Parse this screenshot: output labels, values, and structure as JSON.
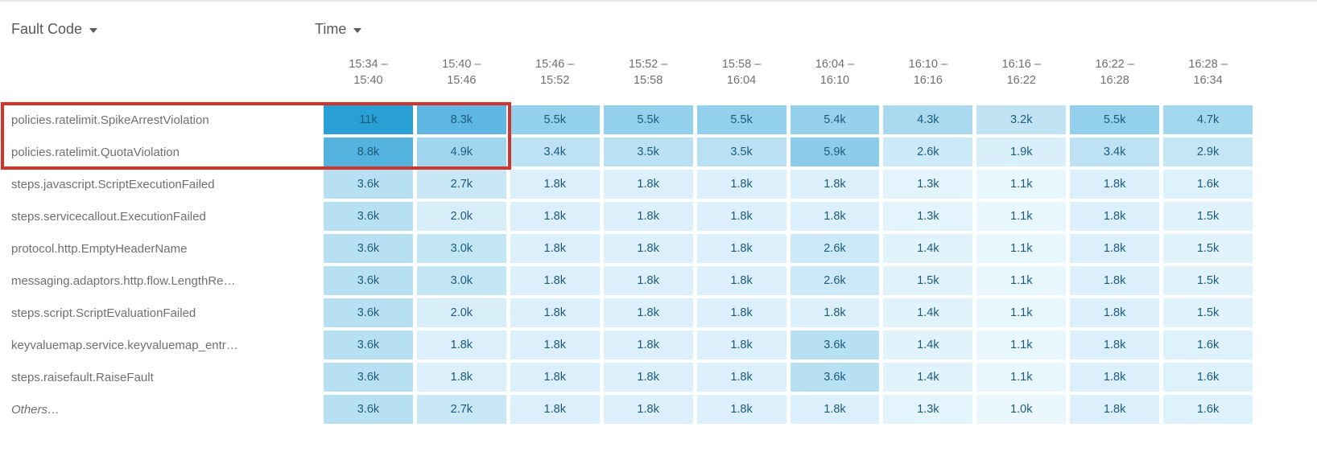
{
  "headers": {
    "fault_code": "Fault Code",
    "time": "Time"
  },
  "time_buckets": [
    {
      "top": "15:34 –",
      "bottom": "15:40"
    },
    {
      "top": "15:40 –",
      "bottom": "15:46"
    },
    {
      "top": "15:46 –",
      "bottom": "15:52"
    },
    {
      "top": "15:52 –",
      "bottom": "15:58"
    },
    {
      "top": "15:58 –",
      "bottom": "16:04"
    },
    {
      "top": "16:04 –",
      "bottom": "16:10"
    },
    {
      "top": "16:10 –",
      "bottom": "16:16"
    },
    {
      "top": "16:16 –",
      "bottom": "16:22"
    },
    {
      "top": "16:22 –",
      "bottom": "16:28"
    },
    {
      "top": "16:28 –",
      "bottom": "16:34"
    }
  ],
  "chart_data": {
    "type": "heatmap",
    "x_categories": [
      "15:34 – 15:40",
      "15:40 – 15:46",
      "15:46 – 15:52",
      "15:52 – 15:58",
      "15:58 – 16:04",
      "16:04 – 16:10",
      "16:10 – 16:16",
      "16:16 – 16:22",
      "16:22 – 16:28",
      "16:28 – 16:34"
    ],
    "rows": [
      {
        "label": "policies.ratelimit.SpikeArrestViolation",
        "italic": false,
        "values": [
          "11k",
          "8.3k",
          "5.5k",
          "5.5k",
          "5.5k",
          "5.4k",
          "4.3k",
          "3.2k",
          "5.5k",
          "4.7k"
        ]
      },
      {
        "label": "policies.ratelimit.QuotaViolation",
        "italic": false,
        "values": [
          "8.8k",
          "4.9k",
          "3.4k",
          "3.5k",
          "3.5k",
          "5.9k",
          "2.6k",
          "1.9k",
          "3.4k",
          "2.9k"
        ]
      },
      {
        "label": "steps.javascript.ScriptExecutionFailed",
        "italic": false,
        "values": [
          "3.6k",
          "2.7k",
          "1.8k",
          "1.8k",
          "1.8k",
          "1.8k",
          "1.3k",
          "1.1k",
          "1.8k",
          "1.6k"
        ]
      },
      {
        "label": "steps.servicecallout.ExecutionFailed",
        "italic": false,
        "values": [
          "3.6k",
          "2.0k",
          "1.8k",
          "1.8k",
          "1.8k",
          "1.8k",
          "1.3k",
          "1.1k",
          "1.8k",
          "1.5k"
        ]
      },
      {
        "label": "protocol.http.EmptyHeaderName",
        "italic": false,
        "values": [
          "3.6k",
          "3.0k",
          "1.8k",
          "1.8k",
          "1.8k",
          "2.6k",
          "1.4k",
          "1.1k",
          "1.8k",
          "1.5k"
        ]
      },
      {
        "label": "messaging.adaptors.http.flow.LengthRe…",
        "italic": false,
        "values": [
          "3.6k",
          "3.0k",
          "1.8k",
          "1.8k",
          "1.8k",
          "2.6k",
          "1.5k",
          "1.1k",
          "1.8k",
          "1.5k"
        ]
      },
      {
        "label": "steps.script.ScriptEvaluationFailed",
        "italic": false,
        "values": [
          "3.6k",
          "2.0k",
          "1.8k",
          "1.8k",
          "1.8k",
          "1.8k",
          "1.4k",
          "1.1k",
          "1.8k",
          "1.5k"
        ]
      },
      {
        "label": "keyvaluemap.service.keyvaluemap_entr…",
        "italic": false,
        "values": [
          "3.6k",
          "1.8k",
          "1.8k",
          "1.8k",
          "1.8k",
          "3.6k",
          "1.4k",
          "1.1k",
          "1.8k",
          "1.6k"
        ]
      },
      {
        "label": "steps.raisefault.RaiseFault",
        "italic": false,
        "values": [
          "3.6k",
          "1.8k",
          "1.8k",
          "1.8k",
          "1.8k",
          "3.6k",
          "1.4k",
          "1.1k",
          "1.8k",
          "1.6k"
        ]
      },
      {
        "label": "Others…",
        "italic": true,
        "values": [
          "3.6k",
          "2.7k",
          "1.8k",
          "1.8k",
          "1.8k",
          "1.8k",
          "1.3k",
          "1.0k",
          "1.8k",
          "1.6k"
        ]
      }
    ]
  },
  "heatmap_scale": {
    "min_value_k": 1.0,
    "max_value_k": 11.0,
    "low_color": "#eaf7fd",
    "high_color": "#29a0d5",
    "cell_text_color": "#1d5b7e"
  },
  "highlight": {
    "color": "#d0342c"
  }
}
